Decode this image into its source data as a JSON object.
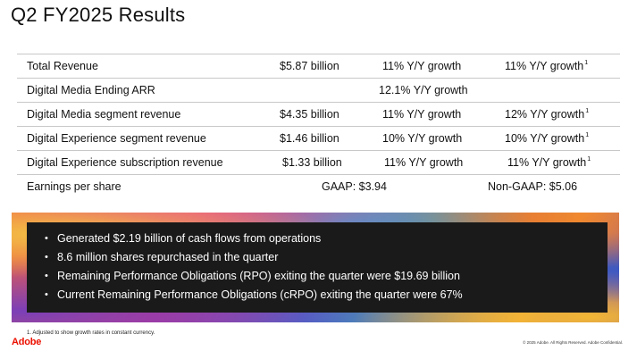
{
  "title": "Q2 FY2025 Results",
  "rows": [
    {
      "label": "Total Revenue",
      "value": "$5.87 billion",
      "yy": "11% Y/Y growth",
      "cc": "11% Y/Y growth",
      "note": "1"
    },
    {
      "label": "Digital Media Ending ARR",
      "mid": "12.1% Y/Y growth"
    },
    {
      "label": "Digital Media segment revenue",
      "value": "$4.35 billion",
      "yy": "11% Y/Y growth",
      "cc": "12% Y/Y growth",
      "note": "1"
    },
    {
      "label": "Digital Experience segment revenue",
      "value": "$1.46 billion",
      "yy": "10% Y/Y growth",
      "cc": "10% Y/Y growth",
      "note": "1"
    },
    {
      "label": "Digital Experience subscription revenue",
      "value": "$1.33 billion",
      "yy": "11% Y/Y growth",
      "cc": "11% Y/Y growth",
      "note": "1"
    },
    {
      "label": "Earnings per share",
      "gaap": "GAAP: $3.94",
      "non_gaap": "Non-GAAP: $5.06"
    }
  ],
  "highlights": [
    "Generated $2.19 billion of cash flows from operations",
    "8.6 million shares repurchased in the quarter",
    "Remaining Performance Obligations (RPO) exiting the quarter were $19.69 billion",
    "Current Remaining Performance Obligations (cRPO) exiting the quarter were 67%"
  ],
  "footnote": "1. Adjusted to show growth rates in constant currency.",
  "logo": "Adobe",
  "copyright": "© 2025 Adobe. All Rights Reserved. Adobe Confidential.",
  "colors": {
    "brand": "#eb1000",
    "panel": "#1a1a1a"
  }
}
